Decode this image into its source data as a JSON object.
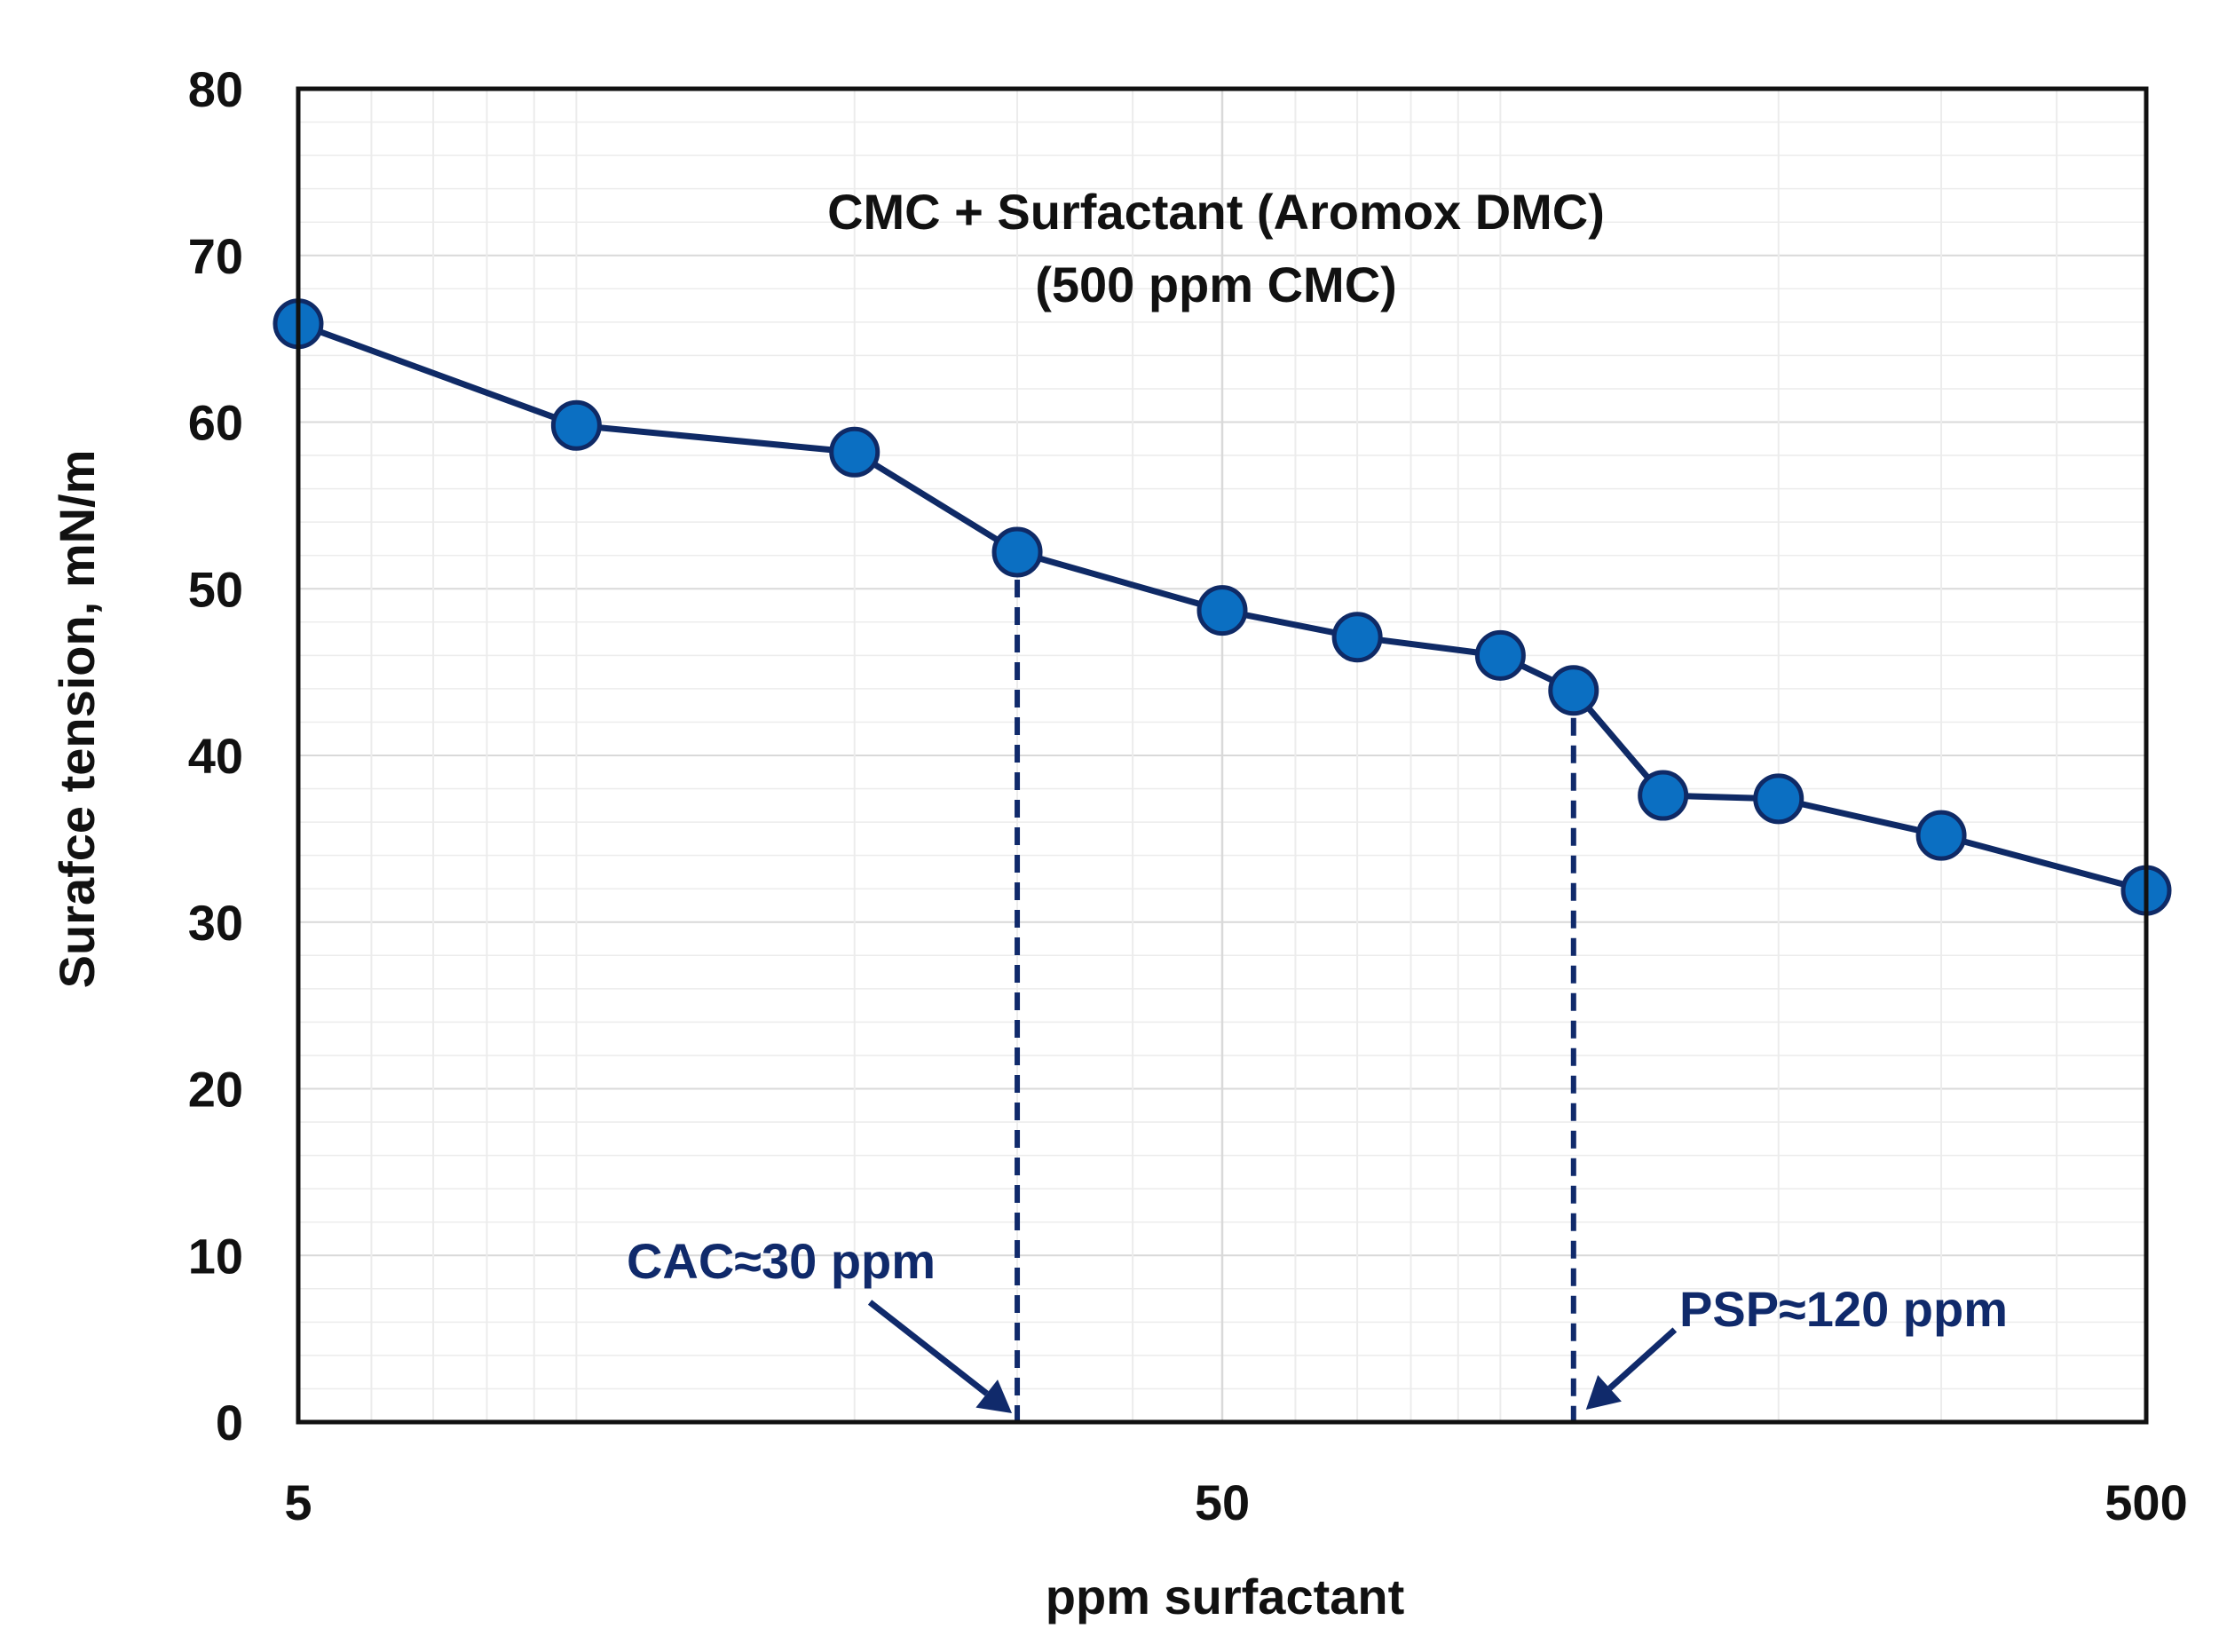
{
  "chart_data": {
    "type": "line",
    "title": "CMC + Surfactant (Aromox DMC)",
    "subtitle": "(500 ppm CMC)",
    "xlabel": "ppm surfactant",
    "ylabel": "Surafce tension, mN/m",
    "xscale": "log",
    "xlim": [
      5,
      500
    ],
    "ylim": [
      0,
      80
    ],
    "x_ticks": [
      5,
      50,
      500
    ],
    "x_tick_labels": [
      "5",
      "50",
      "500"
    ],
    "y_ticks": [
      0,
      10,
      20,
      30,
      40,
      50,
      60,
      70,
      80
    ],
    "y_tick_labels": [
      "0",
      "10",
      "20",
      "30",
      "40",
      "50",
      "60",
      "70",
      "80"
    ],
    "grid": true,
    "series": [
      {
        "name": "CMC + Surfactant (Aromox DMC)",
        "x": [
          5,
          10,
          20,
          30,
          50,
          70,
          100,
          120,
          150,
          200,
          300,
          500
        ],
        "y": [
          65.9,
          59.8,
          58.2,
          52.2,
          48.7,
          47.1,
          46.0,
          43.9,
          37.6,
          37.4,
          35.2,
          31.9
        ]
      }
    ],
    "annotations": [
      {
        "label": "CAC≈30 ppm",
        "x": 30
      },
      {
        "label": "PSP≈120 ppm",
        "x": 120
      }
    ],
    "colors": {
      "series": "#0f2a66",
      "marker_fill": "#0b6fc2",
      "annotation": "#102a6b",
      "axis": "#111111",
      "grid_major": "#d9d9d9",
      "grid_minor": "#ececec"
    }
  }
}
